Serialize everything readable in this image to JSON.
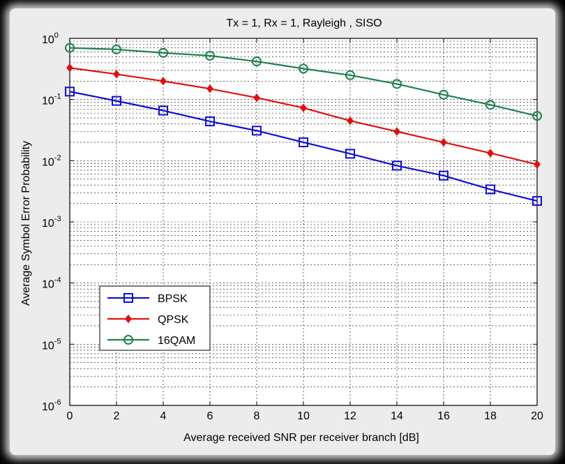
{
  "chart_data": {
    "type": "line",
    "title": "Tx = 1, Rx = 1,  Rayleigh , SISO",
    "xlabel": "Average received SNR per receiver branch [dB]",
    "ylabel": "Average Symbol Error Probability",
    "xlim": [
      0,
      20
    ],
    "ylim": [
      1e-06,
      1
    ],
    "y_scale": "log",
    "grid": true,
    "legend_position": "bottom-left",
    "x_ticks": [
      0,
      2,
      4,
      6,
      8,
      10,
      12,
      14,
      16,
      18,
      20
    ],
    "y_ticks": [
      {
        "base": "10",
        "exp": "0",
        "value": 1
      },
      {
        "base": "10",
        "exp": "-1",
        "value": 0.1
      },
      {
        "base": "10",
        "exp": "-2",
        "value": 0.01
      },
      {
        "base": "10",
        "exp": "-3",
        "value": 0.001
      },
      {
        "base": "10",
        "exp": "-4",
        "value": 0.0001
      },
      {
        "base": "10",
        "exp": "-5",
        "value": 1e-05
      },
      {
        "base": "10",
        "exp": "-6",
        "value": 1e-06
      }
    ],
    "x": [
      0,
      2,
      4,
      6,
      8,
      10,
      12,
      14,
      16,
      18,
      20
    ],
    "series": [
      {
        "name": "BPSK",
        "color": "#1010d0",
        "marker": "square",
        "values": [
          0.135,
          0.095,
          0.066,
          0.044,
          0.031,
          0.02,
          0.013,
          0.0083,
          0.0057,
          0.0034,
          0.0022
        ]
      },
      {
        "name": "QPSK",
        "color": "#e01010",
        "marker": "diamond",
        "values": [
          0.33,
          0.26,
          0.2,
          0.15,
          0.107,
          0.073,
          0.045,
          0.03,
          0.02,
          0.0133,
          0.0087
        ]
      },
      {
        "name": "16QAM",
        "color": "#208050",
        "marker": "circle",
        "values": [
          0.7,
          0.66,
          0.58,
          0.52,
          0.42,
          0.32,
          0.25,
          0.18,
          0.12,
          0.082,
          0.054
        ]
      }
    ]
  }
}
